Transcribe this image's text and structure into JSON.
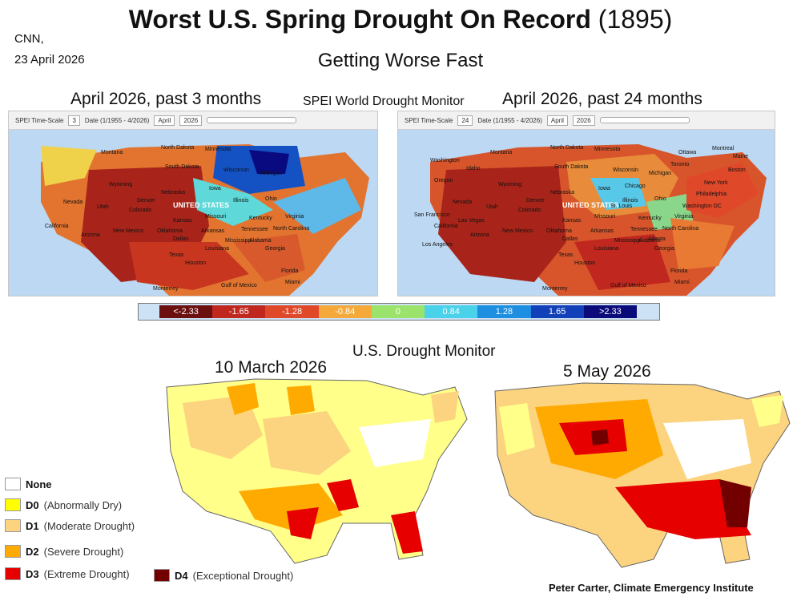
{
  "source": {
    "outlet": "CNN,",
    "date": "23 April 2026"
  },
  "title": {
    "main": "Worst U.S. Spring Drought On Record",
    "year": "(1895)"
  },
  "subtitle": "Getting Worse Fast",
  "spei": {
    "title": "SPEI World Drought Monitor",
    "left_label": "April 2026, past 3 months",
    "right_label": "April 2026, past 24 months",
    "left_controls": {
      "timescale_label": "SPEI Time-Scale",
      "timescale": "3",
      "date_label": "Date (1/1955 - 4/2026)",
      "month": "April",
      "year": "2026"
    },
    "right_controls": {
      "timescale_label": "SPEI Time-Scale",
      "timescale": "24",
      "date_label": "Date (1/1955 - 4/2026)",
      "month": "April",
      "year": "2026"
    },
    "map_labels": [
      "Montana",
      "North Dakota",
      "Minnesota",
      "South Dakota",
      "Wisconsin",
      "Michigan",
      "Wyoming",
      "Iowa",
      "Nebraska",
      "Nevada",
      "Utah",
      "Colorado",
      "Denver",
      "UNITED STATES",
      "Kansas",
      "Missouri",
      "Illinois",
      "Ohio",
      "Kentucky",
      "Virginia",
      "Tennessee",
      "Oklahoma",
      "Arkansas",
      "New Mexico",
      "Arizona",
      "California",
      "Texas",
      "Dallas",
      "Houston",
      "Louisiana",
      "Mississippi",
      "Alabama",
      "Georgia",
      "North Carolina",
      "Florida",
      "Miami",
      "Monterrey",
      "Gulf of Mexico",
      "Washington",
      "Oregon",
      "Idaho",
      "Chicago",
      "Toronto",
      "New York",
      "Boston",
      "Maine",
      "Ottawa",
      "Montreal",
      "Philadelphia",
      "Washington DC",
      "Los Angeles",
      "San Francisco",
      "Las Vegas",
      "St. Louis",
      "Atlanta"
    ],
    "scale_values": [
      "<-2.33",
      "-1.65",
      "-1.28",
      "-0.84",
      "0",
      "0.84",
      "1.28",
      "1.65",
      ">2.33"
    ],
    "scale_colors": [
      "#6b0f0f",
      "#c0271e",
      "#e0482a",
      "#f4a93a",
      "#9be36a",
      "#4ad2ea",
      "#1e8ee0",
      "#1240b8",
      "#0a0a7a"
    ]
  },
  "usdm": {
    "title": "U.S. Drought Monitor",
    "left_label": "10 March 2026",
    "right_label": "5 May 2026"
  },
  "legend": [
    {
      "code": "None",
      "desc": "",
      "color": "#ffffff"
    },
    {
      "code": "D0",
      "desc": "(Abnormally Dry)",
      "color": "#ffff00"
    },
    {
      "code": "D1",
      "desc": "(Moderate Drought)",
      "color": "#fcd37f"
    },
    {
      "code": "D2",
      "desc": "(Severe Drought)",
      "color": "#ffaa00"
    },
    {
      "code": "D3",
      "desc": "(Extreme Drought)",
      "color": "#e60000"
    },
    {
      "code": "D4",
      "desc": "(Exceptional Drought)",
      "color": "#730000"
    }
  ],
  "credit": "Peter Carter, Climate Emergency Institute"
}
